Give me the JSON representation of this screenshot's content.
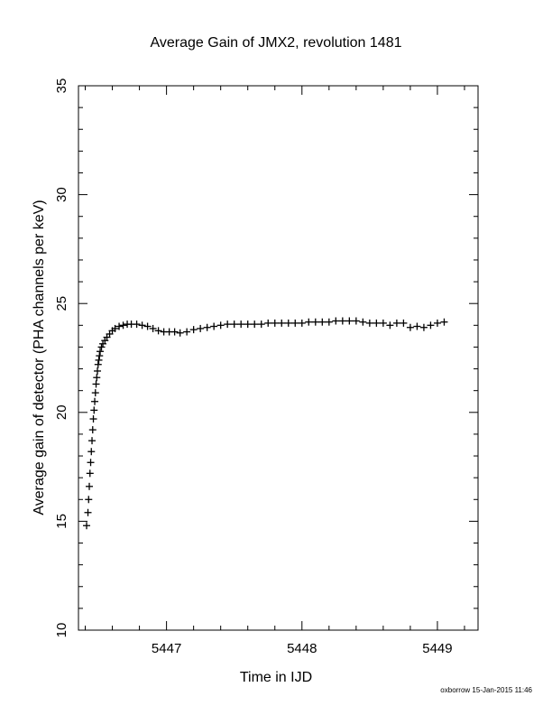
{
  "chart_data": {
    "type": "scatter",
    "title": "Average Gain of JMX2, revolution 1481",
    "xlabel": "Time in IJD",
    "ylabel": "Average gain of detector (PHA channels per keV)",
    "xlim": [
      5446.35,
      5449.3
    ],
    "ylim": [
      10,
      35
    ],
    "xticks": [
      5447,
      5448,
      5449
    ],
    "yticks": [
      10,
      15,
      20,
      25,
      30,
      35
    ],
    "marker": "plus",
    "grid": false,
    "series": [
      {
        "x": [
          5446.41,
          5446.42,
          5446.425,
          5446.43,
          5446.435,
          5446.44,
          5446.445,
          5446.45,
          5446.455,
          5446.46,
          5446.465,
          5446.47,
          5446.475,
          5446.48,
          5446.485,
          5446.49,
          5446.495,
          5446.5,
          5446.505,
          5446.51,
          5446.52,
          5446.53,
          5446.545,
          5446.56,
          5446.58,
          5446.6,
          5446.62,
          5446.65,
          5446.68,
          5446.71,
          5446.74,
          5446.78,
          5446.82,
          5446.86,
          5446.9,
          5446.94,
          5446.98,
          5447.02,
          5447.06,
          5447.1,
          5447.15,
          5447.2,
          5447.25,
          5447.3,
          5447.35,
          5447.4,
          5447.45,
          5447.5,
          5447.55,
          5447.6,
          5447.65,
          5447.7,
          5447.75,
          5447.8,
          5447.85,
          5447.9,
          5447.95,
          5448.0,
          5448.05,
          5448.1,
          5448.15,
          5448.2,
          5448.25,
          5448.3,
          5448.35,
          5448.4,
          5448.45,
          5448.5,
          5448.55,
          5448.6,
          5448.65,
          5448.7,
          5448.75,
          5448.8,
          5448.85,
          5448.9,
          5448.95,
          5449.0,
          5449.05
        ],
        "y": [
          14.8,
          15.4,
          16.0,
          16.6,
          17.2,
          17.7,
          18.2,
          18.7,
          19.2,
          19.7,
          20.1,
          20.5,
          20.9,
          21.3,
          21.6,
          21.9,
          22.2,
          22.4,
          22.6,
          22.8,
          23.0,
          23.15,
          23.3,
          23.45,
          23.6,
          23.75,
          23.85,
          23.95,
          24.0,
          24.05,
          24.05,
          24.05,
          24.0,
          23.95,
          23.85,
          23.75,
          23.7,
          23.7,
          23.7,
          23.65,
          23.7,
          23.8,
          23.85,
          23.9,
          23.95,
          24.0,
          24.05,
          24.05,
          24.05,
          24.05,
          24.05,
          24.05,
          24.1,
          24.1,
          24.1,
          24.1,
          24.1,
          24.1,
          24.15,
          24.15,
          24.15,
          24.15,
          24.2,
          24.2,
          24.2,
          24.2,
          24.15,
          24.1,
          24.1,
          24.1,
          24.0,
          24.1,
          24.1,
          23.9,
          23.95,
          23.9,
          24.0,
          24.1,
          24.15
        ]
      }
    ]
  },
  "footer": "oxborrow 15-Jan-2015 11:46"
}
